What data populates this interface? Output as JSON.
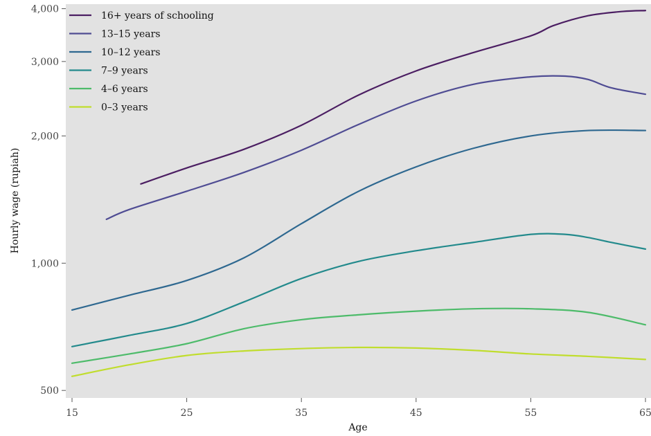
{
  "chart_data": {
    "type": "line",
    "xlabel": "Age",
    "ylabel": "Hourly wage (rupiah)",
    "y_scale": "log",
    "xlim": [
      15,
      65
    ],
    "ylim": [
      480,
      4100
    ],
    "x_ticks": [
      15,
      25,
      35,
      45,
      55,
      65
    ],
    "x_tick_labels": [
      "15",
      "25",
      "35",
      "45",
      "55",
      "65"
    ],
    "y_ticks": [
      500,
      1000,
      2000,
      3000,
      4000
    ],
    "y_tick_labels": [
      "500",
      "1,000",
      "2,000",
      "3,000",
      "4,000"
    ],
    "grid": false,
    "legend_position": "top-left",
    "series": [
      {
        "name": "16+ years of schooling",
        "color": "#4b1e62",
        "x": [
          21,
          25,
          30,
          35,
          40,
          45,
          50,
          55,
          57,
          60,
          63,
          65
        ],
        "y": [
          1540,
          1680,
          1860,
          2120,
          2500,
          2850,
          3150,
          3450,
          3650,
          3850,
          3940,
          3960
        ]
      },
      {
        "name": "13–15 years",
        "color": "#4f4c93",
        "x": [
          18,
          20,
          25,
          30,
          35,
          40,
          45,
          50,
          55,
          58,
          60,
          62,
          65
        ],
        "y": [
          1270,
          1340,
          1480,
          1640,
          1850,
          2130,
          2420,
          2650,
          2760,
          2770,
          2720,
          2600,
          2510
        ]
      },
      {
        "name": "10–12 years",
        "color": "#2e6890",
        "x": [
          15,
          20,
          25,
          30,
          35,
          40,
          45,
          50,
          55,
          60,
          65
        ],
        "y": [
          775,
          840,
          910,
          1030,
          1240,
          1480,
          1690,
          1870,
          2000,
          2060,
          2060
        ]
      },
      {
        "name": "7–9 years",
        "color": "#238a8c",
        "x": [
          15,
          20,
          25,
          30,
          35,
          40,
          45,
          50,
          55,
          58,
          60,
          62,
          65
        ],
        "y": [
          635,
          675,
          720,
          810,
          920,
          1010,
          1070,
          1120,
          1170,
          1170,
          1150,
          1120,
          1080
        ]
      },
      {
        "name": "4–6 years",
        "color": "#4dbb6a",
        "x": [
          15,
          20,
          25,
          30,
          35,
          40,
          45,
          50,
          55,
          60,
          65
        ],
        "y": [
          580,
          610,
          645,
          700,
          735,
          755,
          770,
          780,
          780,
          765,
          715
        ]
      },
      {
        "name": "0–3 years",
        "color": "#c0dd2d",
        "x": [
          15,
          20,
          25,
          30,
          35,
          40,
          45,
          50,
          55,
          60,
          65
        ],
        "y": [
          540,
          575,
          605,
          620,
          628,
          632,
          630,
          622,
          610,
          602,
          592
        ]
      }
    ]
  }
}
